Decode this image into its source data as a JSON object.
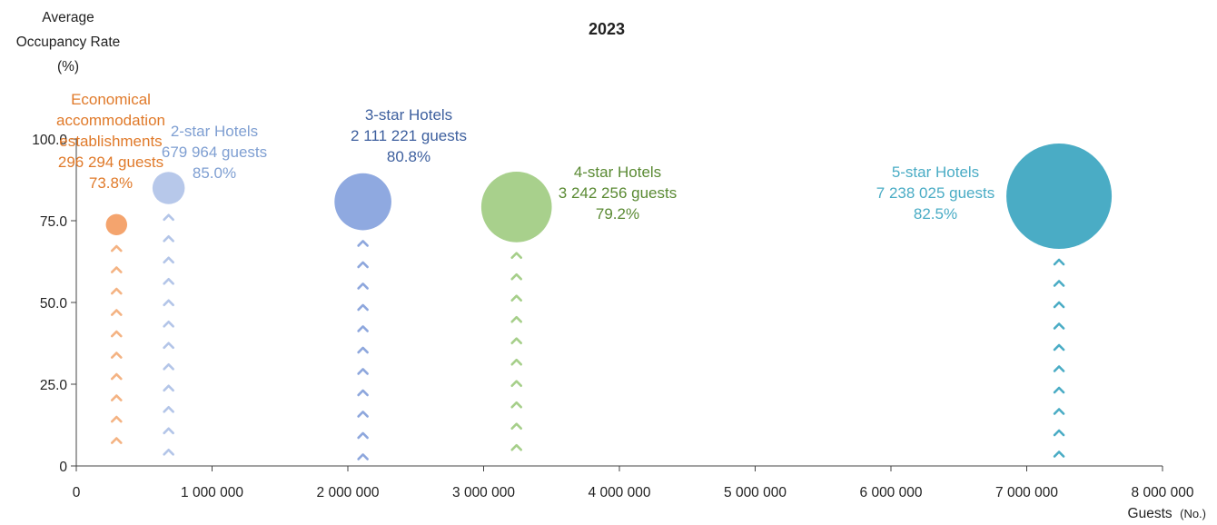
{
  "chart_data": {
    "type": "scatter",
    "title": "2023",
    "ylabel_lines": [
      "Average",
      "Occupancy Rate",
      "(%)"
    ],
    "xlabel": "Guests",
    "xlabel_unit": "(No.)",
    "xlim": [
      0,
      8000000
    ],
    "ylim": [
      0,
      100
    ],
    "x_ticks": [
      {
        "value": 0,
        "label": "0"
      },
      {
        "value": 1000000,
        "label": "1 000 000"
      },
      {
        "value": 2000000,
        "label": "2 000 000"
      },
      {
        "value": 3000000,
        "label": "3 000 000"
      },
      {
        "value": 4000000,
        "label": "4 000 000"
      },
      {
        "value": 5000000,
        "label": "5 000 000"
      },
      {
        "value": 6000000,
        "label": "6 000 000"
      },
      {
        "value": 7000000,
        "label": "7 000 000"
      },
      {
        "value": 8000000,
        "label": "8 000 000"
      }
    ],
    "y_ticks": [
      {
        "value": 0,
        "label": "0"
      },
      {
        "value": 25,
        "label": "25.0"
      },
      {
        "value": 50,
        "label": "50.0"
      },
      {
        "value": 75,
        "label": "75.0"
      },
      {
        "value": 100,
        "label": "100.0"
      }
    ],
    "grid": false,
    "series": [
      {
        "name": "Economical accommodation establishments",
        "label_lines": [
          "Economical",
          "accommodation",
          "establishments",
          "296 294 guests",
          "73.8%"
        ],
        "x": 296294,
        "y": 73.8,
        "color": "#f4a46e",
        "label_color": "#e07a2a",
        "arrow_color": "#f4b383"
      },
      {
        "name": "2-star Hotels",
        "label_lines": [
          "2-star Hotels",
          "679 964 guests",
          "85.0%"
        ],
        "x": 679964,
        "y": 85.0,
        "color": "#b7c8ea",
        "label_color": "#7f9fd2",
        "arrow_color": "#b3c5e8"
      },
      {
        "name": "3-star Hotels",
        "label_lines": [
          "3-star Hotels",
          "2 111 221 guests",
          "80.8%"
        ],
        "x": 2111221,
        "y": 80.8,
        "color": "#8fa9e0",
        "label_color": "#3d5f9e",
        "arrow_color": "#8ea7dd"
      },
      {
        "name": "4-star Hotels",
        "label_lines": [
          "4-star Hotels",
          "3 242 256 guests",
          "79.2%"
        ],
        "x": 3242256,
        "y": 79.2,
        "color": "#a8d08c",
        "label_color": "#5a8a33",
        "arrow_color": "#a6cf8a"
      },
      {
        "name": "5-star Hotels",
        "label_lines": [
          "5-star Hotels",
          "7 238 025 guests",
          "82.5%"
        ],
        "x": 7238025,
        "y": 82.5,
        "color": "#4aacc5",
        "label_color": "#4aacc5",
        "arrow_color": "#4aacc5"
      }
    ]
  }
}
